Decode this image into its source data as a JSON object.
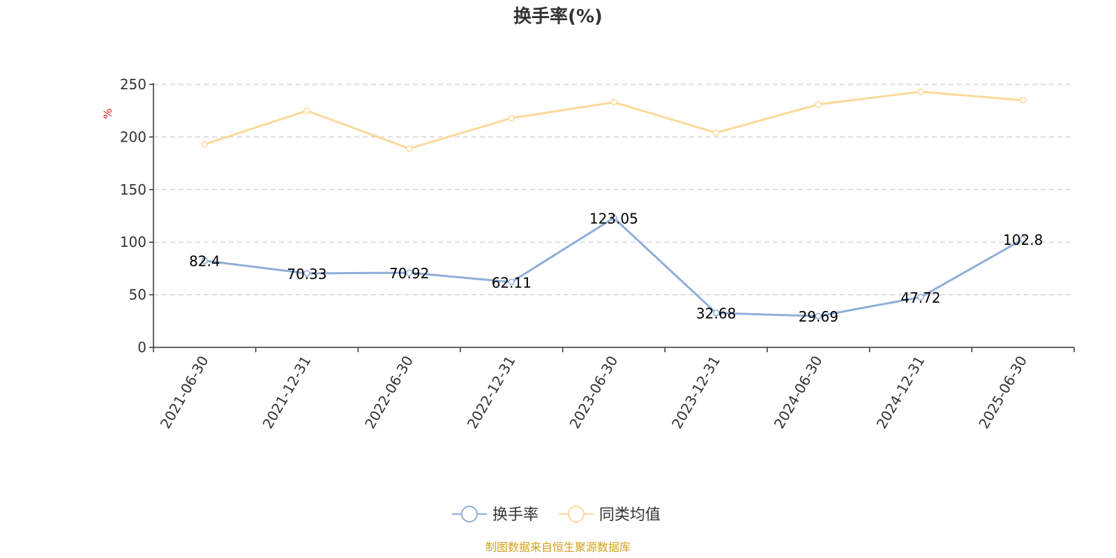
{
  "chart_data": {
    "type": "line",
    "title": "换手率(%)",
    "ylabel": "%",
    "categories": [
      "2021-06-30",
      "2021-12-31",
      "2022-06-30",
      "2022-12-31",
      "2023-06-30",
      "2023-12-31",
      "2024-06-30",
      "2024-12-31",
      "2025-06-30"
    ],
    "ylim": [
      0,
      250
    ],
    "yticks": [
      0,
      50,
      100,
      150,
      200,
      250
    ],
    "grid": true,
    "legend_position": "bottom-center",
    "series": [
      {
        "name": "换手率",
        "color": "#8eaed8",
        "values": [
          82.4,
          70.33,
          70.92,
          62.11,
          123.05,
          32.68,
          29.69,
          47.72,
          102.8
        ],
        "labels": [
          "82.4",
          "70.33",
          "70.92",
          "62.11",
          "123.05",
          "32.68",
          "29.69",
          "47.72",
          "102.8"
        ]
      },
      {
        "name": "同类均值",
        "color": "#fbd99a",
        "values": [
          193,
          225,
          189,
          218,
          233,
          204,
          231,
          243,
          235
        ]
      }
    ]
  },
  "source_note": "制图数据来自恒生聚源数据库",
  "colors": {
    "unit_label": "#e02020",
    "source_note": "#d4a017",
    "axis": "#333333",
    "grid": "#cccccc"
  }
}
